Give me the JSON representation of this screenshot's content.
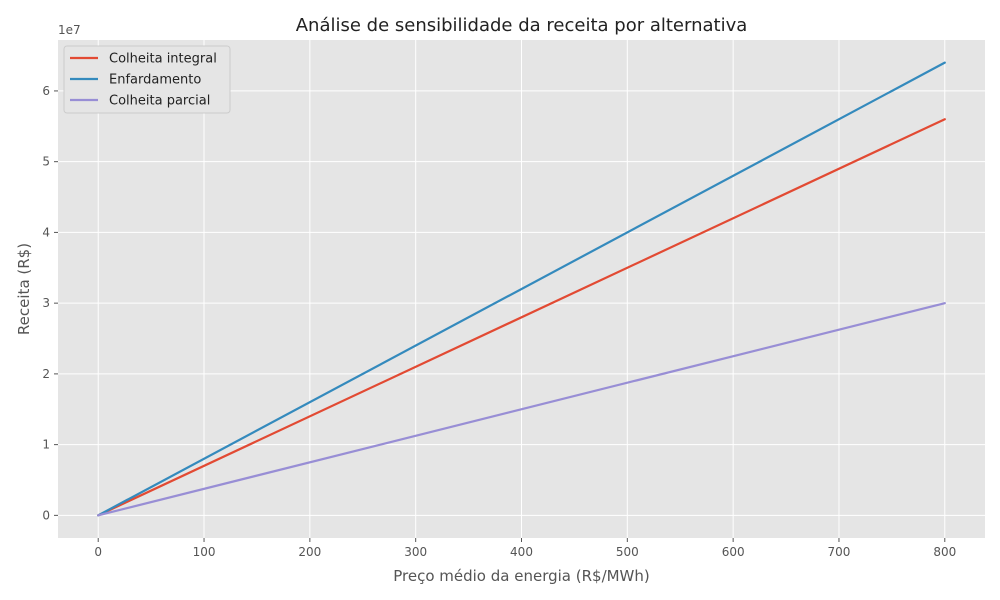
{
  "chart_data": {
    "type": "line",
    "title": "Análise de sensibilidade da receita por alternativa",
    "xlabel": "Preço médio da energia (R$/MWh)",
    "ylabel": "Receita (R$)",
    "y_offset_label": "1e7",
    "xlim": [
      -38,
      838
    ],
    "ylim": [
      -0.32,
      6.72
    ],
    "y_unit_multiplier": 10000000,
    "xticks": [
      0,
      100,
      200,
      300,
      400,
      500,
      600,
      700,
      800
    ],
    "yticks": [
      0,
      1,
      2,
      3,
      4,
      5,
      6
    ],
    "grid": true,
    "legend_position": "top-left",
    "series": [
      {
        "name": "Colheita integral",
        "color": "#E24A33",
        "x": [
          0,
          800
        ],
        "y": [
          0,
          5.6
        ]
      },
      {
        "name": "Enfardamento",
        "color": "#348ABD",
        "x": [
          0,
          800
        ],
        "y": [
          0,
          6.4
        ]
      },
      {
        "name": "Colheita parcial",
        "color": "#988ED5",
        "x": [
          0,
          800
        ],
        "y": [
          0,
          3.0
        ]
      }
    ]
  }
}
